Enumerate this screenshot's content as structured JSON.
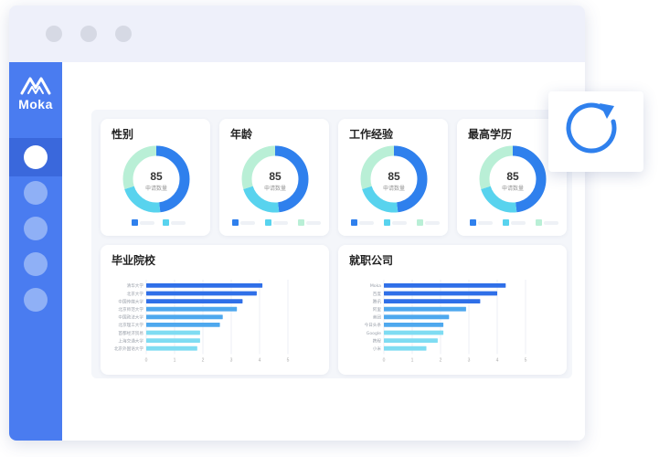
{
  "brand": {
    "name": "Moka"
  },
  "colors": {
    "sidebar": "#4a7cf0",
    "blue": "#2f80ed",
    "cyan": "#58d3ee",
    "mint": "#b9efd6",
    "bar_dark": "#2f6fe8",
    "bar_light": "#7fdcf2"
  },
  "icons": {
    "logo": "moka-logo-icon",
    "refresh": "refresh-icon"
  },
  "donut_cards": [
    {
      "title": "性别",
      "value": "85",
      "caption": "申请数量",
      "segments": [
        0.48,
        0.22,
        0.3
      ]
    },
    {
      "title": "年龄",
      "value": "85",
      "caption": "申请数量",
      "segments": [
        0.48,
        0.22,
        0.3
      ]
    },
    {
      "title": "工作经验",
      "value": "85",
      "caption": "申请数量",
      "segments": [
        0.48,
        0.22,
        0.3
      ]
    },
    {
      "title": "最高学历",
      "value": "85",
      "caption": "申请数量",
      "segments": [
        0.48,
        0.22,
        0.3
      ]
    }
  ],
  "bar_cards": [
    {
      "title": "毕业院校",
      "categories": [
        "清华大学",
        "北京大学",
        "中国传媒大学",
        "北京师范大学",
        "中国政法大学",
        "北京理工大学",
        "首都经济贸易",
        "上海交通大学",
        "北京外国语大学"
      ],
      "values": [
        4.1,
        3.9,
        3.4,
        3.2,
        2.7,
        2.6,
        1.9,
        1.9,
        1.8
      ],
      "ticks": [
        "0",
        "1",
        "2",
        "3",
        "4",
        "5"
      ],
      "xmax": 5
    },
    {
      "title": "就职公司",
      "categories": [
        "Moka",
        "百度",
        "腾讯",
        "阿里",
        "美团",
        "今日头条",
        "Google",
        "携程",
        "小米"
      ],
      "values": [
        4.3,
        4.0,
        3.4,
        2.9,
        2.3,
        2.1,
        2.1,
        1.9,
        1.5
      ],
      "ticks": [
        "0",
        "1",
        "2",
        "3",
        "4",
        "5"
      ],
      "xmax": 5
    }
  ]
}
